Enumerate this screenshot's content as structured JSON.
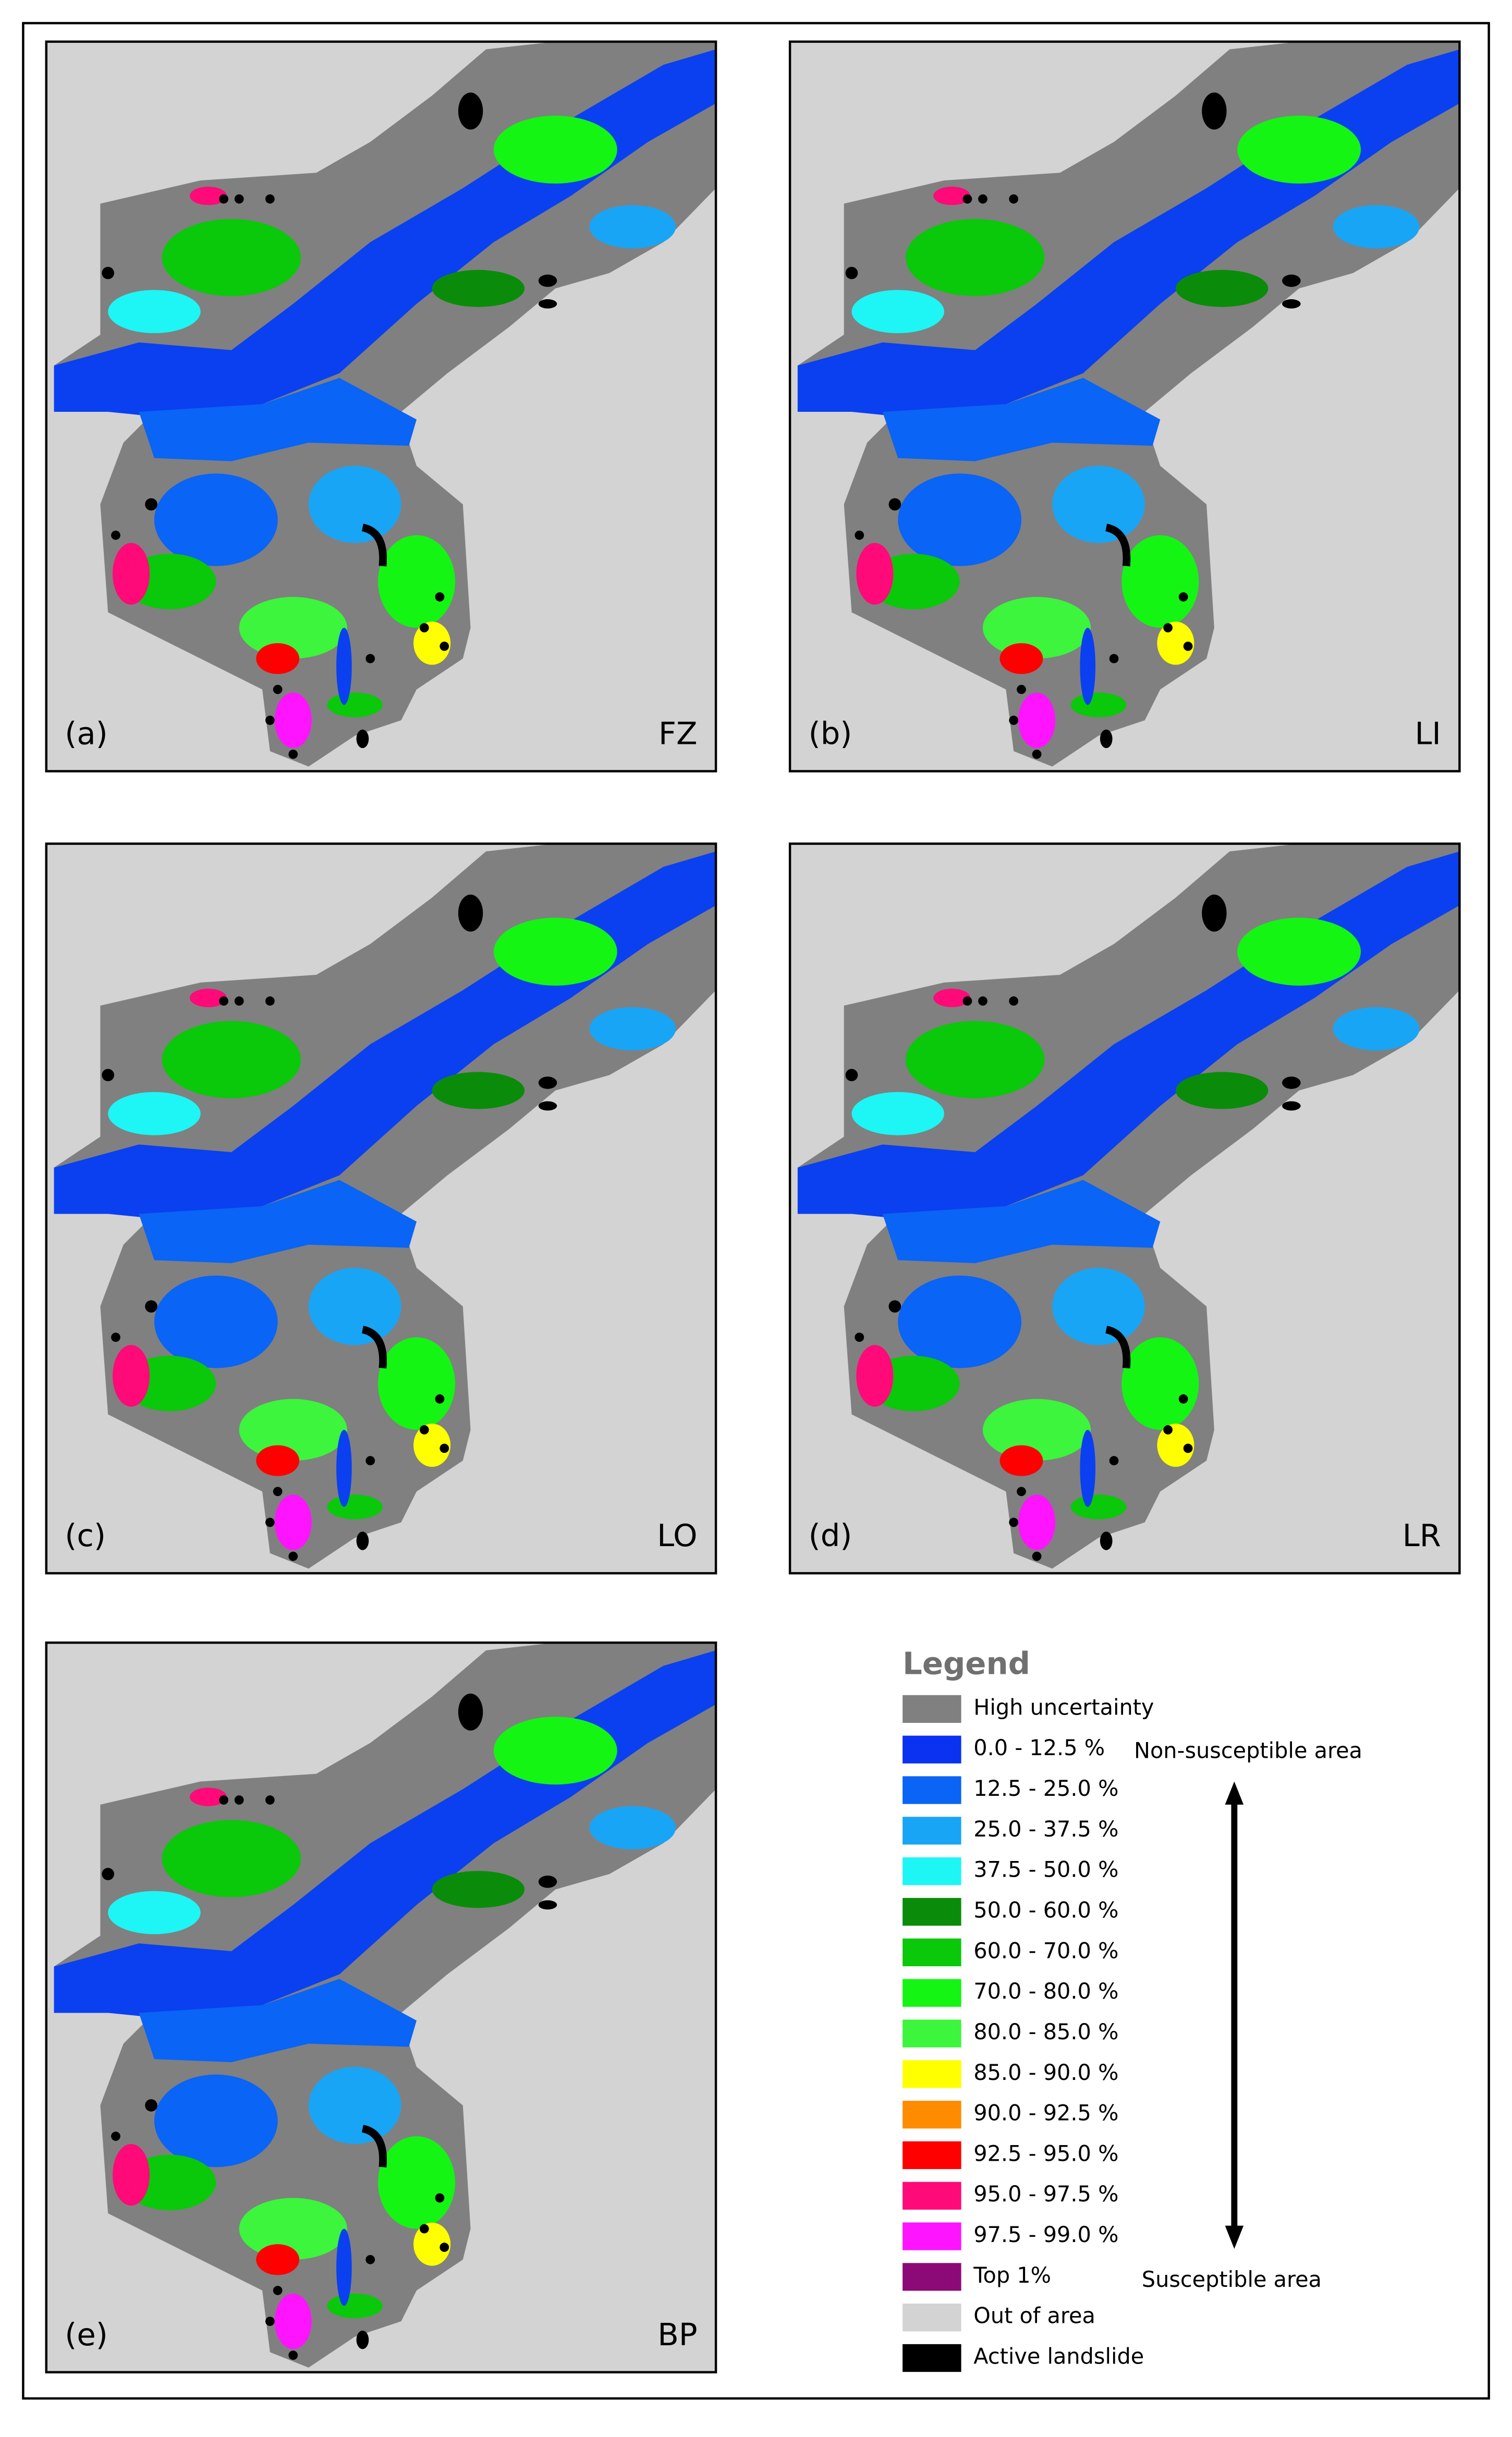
{
  "panels": [
    {
      "label": "(a)",
      "model": "FZ"
    },
    {
      "label": "(b)",
      "model": "LI"
    },
    {
      "label": "(c)",
      "model": "LO"
    },
    {
      "label": "(d)",
      "model": "LR"
    },
    {
      "label": "(e)",
      "model": "BP"
    }
  ],
  "legend": {
    "title": "Legend",
    "items": [
      {
        "label": "High uncertainty",
        "color": "#808080"
      },
      {
        "label": "0.0 - 12.5 %",
        "color": "#0a32f0"
      },
      {
        "label": "12.5 - 25.0 %",
        "color": "#0a64f5"
      },
      {
        "label": "25.0 - 37.5 %",
        "color": "#19a5f5"
      },
      {
        "label": "37.5 - 50.0 %",
        "color": "#1ef5f5"
      },
      {
        "label": "50.0 - 60.0 %",
        "color": "#0a8c0a"
      },
      {
        "label": "60.0 - 70.0 %",
        "color": "#0ac80a"
      },
      {
        "label": "70.0 - 80.0 %",
        "color": "#14f514"
      },
      {
        "label": "80.0 - 85.0 %",
        "color": "#3cf53c"
      },
      {
        "label": "85.0 - 90.0 %",
        "color": "#ffff00"
      },
      {
        "label": "90.0 - 92.5 %",
        "color": "#ff8c00"
      },
      {
        "label": "92.5 - 95.0 %",
        "color": "#ff0000"
      },
      {
        "label": "95.0 - 97.5 %",
        "color": "#ff0a78"
      },
      {
        "label": "97.5 - 99.0 %",
        "color": "#ff14ff"
      },
      {
        "label": "Top 1%",
        "color": "#8c0a78"
      },
      {
        "label": "Out of area",
        "color": "#d3d3d3"
      },
      {
        "label": "Active landslide",
        "color": "#000000"
      }
    ],
    "low_note": "Non-susceptible area",
    "high_note": "Susceptible area"
  }
}
